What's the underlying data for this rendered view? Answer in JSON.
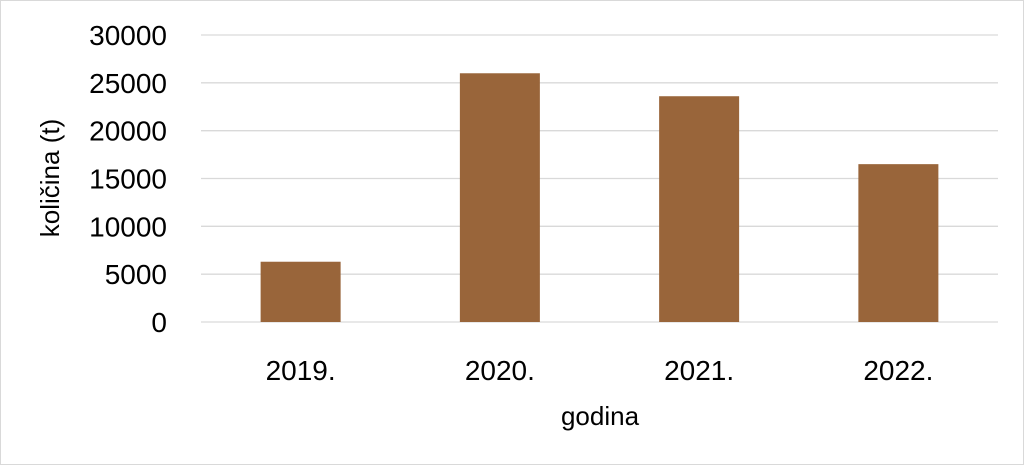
{
  "chart_data": {
    "type": "bar",
    "categories": [
      "2019.",
      "2020.",
      "2021.",
      "2022."
    ],
    "values": [
      6300,
      26000,
      23600,
      16500
    ],
    "xlabel": "godina",
    "ylabel": "količina (t)",
    "ylim": [
      0,
      30000
    ],
    "yticks": [
      0,
      5000,
      10000,
      15000,
      20000,
      25000,
      30000
    ],
    "grid": true,
    "legend": "none",
    "bar_color": "#99653A",
    "grid_color": "#d9d9d9"
  }
}
